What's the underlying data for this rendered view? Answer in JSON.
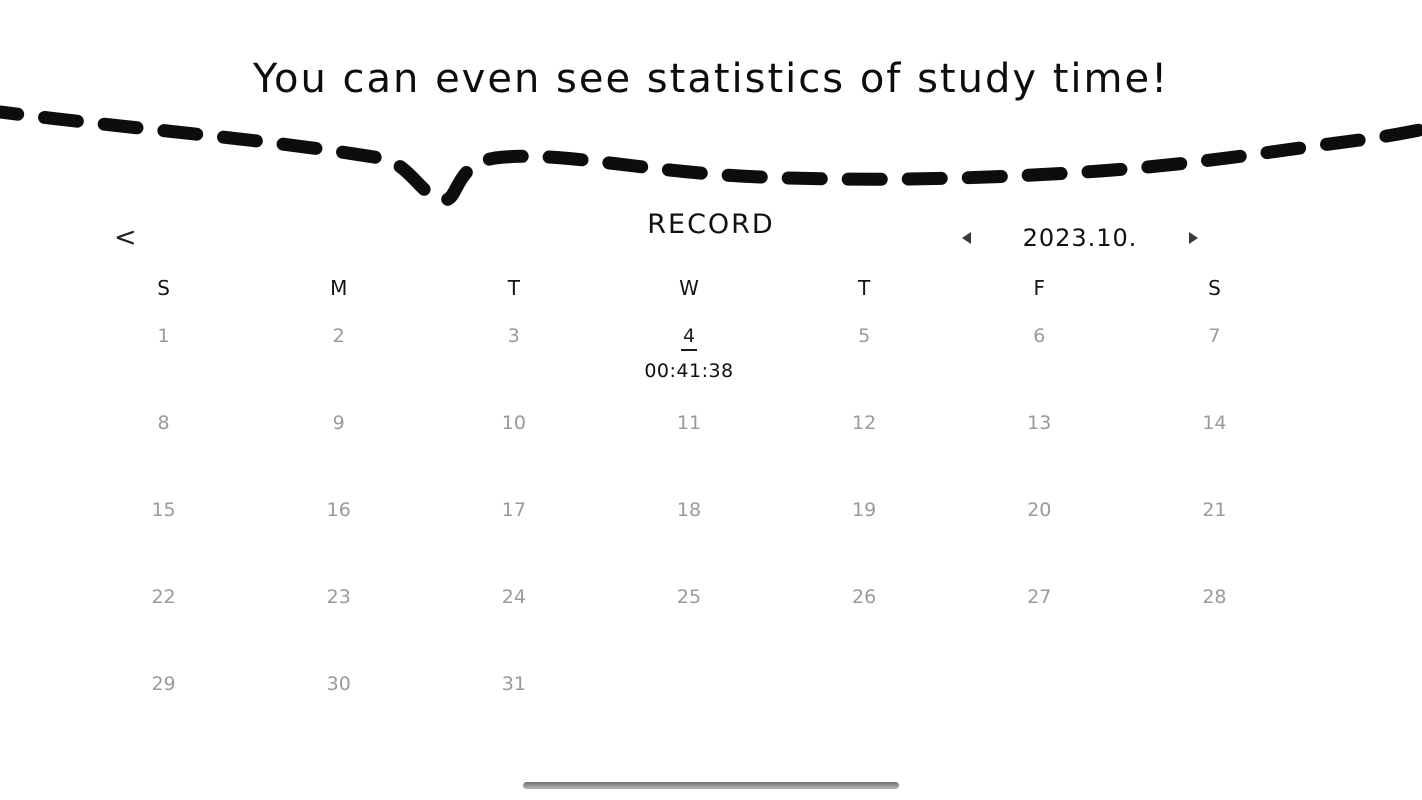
{
  "tagline": "You can even see statistics of study time!",
  "header": {
    "back_icon": "<",
    "title": "RECORD",
    "month_label": "2023.10."
  },
  "calendar": {
    "day_headers": [
      "S",
      "M",
      "T",
      "W",
      "T",
      "F",
      "S"
    ],
    "start_offset": 0,
    "days": [
      "1",
      "2",
      "3",
      "4",
      "5",
      "6",
      "7",
      "8",
      "9",
      "10",
      "11",
      "12",
      "13",
      "14",
      "15",
      "16",
      "17",
      "18",
      "19",
      "20",
      "21",
      "22",
      "23",
      "24",
      "25",
      "26",
      "27",
      "28",
      "29",
      "30",
      "31"
    ],
    "selected_day": "4",
    "selected_time": "00:41:38"
  },
  "colors": {
    "line_black": "#0d0d0d",
    "date_gray": "#9a9a9a",
    "text_primary": "#111111",
    "home_bar_gray": "#8e8e8e"
  }
}
